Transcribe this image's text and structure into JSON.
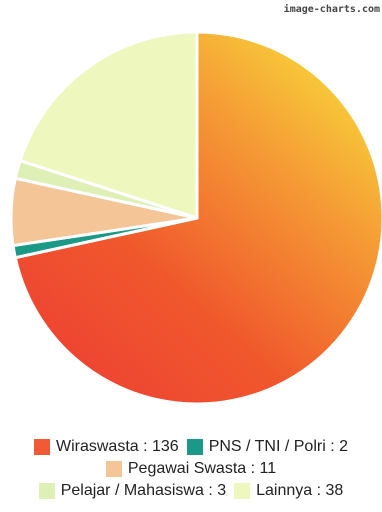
{
  "watermark": "image-charts.com",
  "chart_data": {
    "type": "pie",
    "title": "",
    "slices": [
      {
        "label": "Wiraswasta",
        "value": 136,
        "color": "#f05a36",
        "display": "Wiraswasta : 136"
      },
      {
        "label": "PNS / TNI / Polri",
        "value": 2,
        "color": "#1a9a86",
        "display": "PNS / TNI / Polri : 2"
      },
      {
        "label": "Pegawai Swasta",
        "value": 11,
        "color": "#f4c597",
        "display": "Pegawai Swasta : 11"
      },
      {
        "label": "Pelajar / Mahasiswa",
        "value": 3,
        "color": "#def0b6",
        "display": "Pelajar / Mahasiswa : 3"
      },
      {
        "label": "Lainnya",
        "value": 38,
        "color": "#eef8be",
        "display": "Lainnya : 38"
      }
    ],
    "legend_placement": "bottom",
    "start_angle": "12 o'clock, clockwise"
  }
}
